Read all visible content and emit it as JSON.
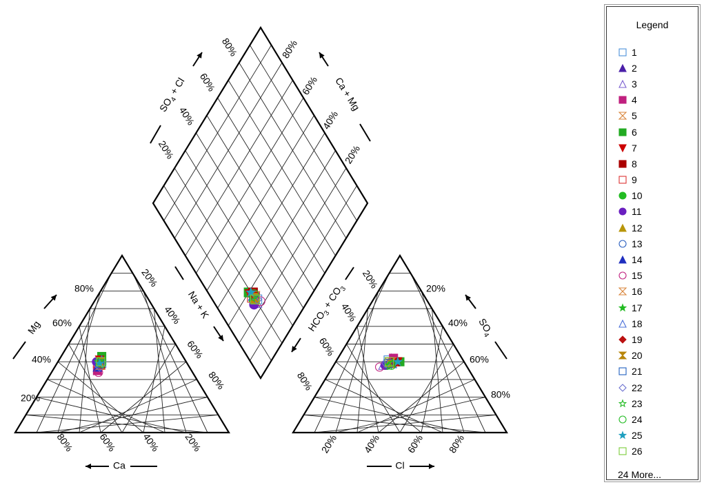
{
  "chart_data": {
    "type": "scatter",
    "subtype": "piper-diagram",
    "axes": {
      "cation_triangle": {
        "left_label": "Mg",
        "right_label": "Na + K",
        "bottom_label": "Ca",
        "left_ticks": [
          "20%",
          "40%",
          "60%",
          "80%"
        ],
        "right_ticks": [
          "20%",
          "40%",
          "60%",
          "80%"
        ],
        "bottom_ticks": [
          "80%",
          "60%",
          "40%",
          "20%"
        ]
      },
      "anion_triangle": {
        "left_label": "HCO3 + CO3",
        "right_label": "SO4",
        "bottom_label": "Cl",
        "left_ticks": [
          "20%",
          "40%",
          "60%",
          "80%"
        ],
        "right_ticks": [
          "20%",
          "40%",
          "60%",
          "80%"
        ],
        "bottom_ticks": [
          "20%",
          "40%",
          "60%",
          "80%"
        ]
      },
      "diamond": {
        "upper_left_label": "SO4 + Cl",
        "upper_right_label": "Ca + Mg",
        "upper_left_ticks": [
          "20%",
          "40%",
          "60%",
          "80%"
        ],
        "upper_right_ticks": [
          "20%",
          "40%",
          "60%",
          "80%"
        ]
      },
      "grid": true,
      "ticks_percent": [
        20,
        40,
        60,
        80
      ]
    },
    "legend": {
      "placement": "right",
      "title": "Legend",
      "more_text": "24 More..."
    },
    "series": [
      {
        "name": "1",
        "marker": "square-open",
        "color": "#4a90d9",
        "cation": [
          40,
          21
        ],
        "anion": [
          35,
          24
        ]
      },
      {
        "name": "2",
        "marker": "triangle",
        "color": "#4b1fa8",
        "cation": [
          43,
          20
        ],
        "anion": [
          33,
          25
        ]
      },
      {
        "name": "3",
        "marker": "triangle-open",
        "color": "#7b5fd0",
        "cation": [
          41,
          20
        ],
        "anion": [
          39,
          23
        ]
      },
      {
        "name": "4",
        "marker": "square",
        "color": "#c0207f",
        "cation": [
          44,
          21
        ],
        "anion": [
          32,
          26
        ]
      },
      {
        "name": "5",
        "marker": "hourglass-open",
        "color": "#d9853b",
        "cation": [
          42,
          20
        ],
        "anion": [
          35,
          25
        ]
      },
      {
        "name": "6",
        "marker": "square",
        "color": "#22aa22",
        "cation": [
          38,
          19
        ],
        "anion": [
          30,
          30
        ]
      },
      {
        "name": "7",
        "marker": "triangle-down",
        "color": "#cc0000",
        "cation": [
          40,
          19
        ],
        "anion": [
          31,
          29
        ]
      },
      {
        "name": "8",
        "marker": "square",
        "color": "#aa0000",
        "cation": [
          41,
          21
        ],
        "anion": [
          32,
          28
        ]
      },
      {
        "name": "9",
        "marker": "square-open",
        "color": "#dd3333",
        "cation": [
          42,
          19
        ],
        "anion": [
          33,
          27
        ]
      },
      {
        "name": "10",
        "marker": "circle",
        "color": "#22bb22",
        "cation": [
          41,
          19
        ],
        "anion": [
          37,
          25
        ]
      },
      {
        "name": "11",
        "marker": "circle",
        "color": "#6a1fc0",
        "cation": [
          42,
          18
        ],
        "anion": [
          38,
          24
        ]
      },
      {
        "name": "12",
        "marker": "triangle",
        "color": "#b8960a",
        "cation": [
          41,
          20
        ],
        "anion": [
          36,
          25
        ]
      },
      {
        "name": "13",
        "marker": "circle-open",
        "color": "#2a5fbf",
        "cation": [
          40,
          20
        ],
        "anion": [
          35,
          26
        ]
      },
      {
        "name": "14",
        "marker": "triangle",
        "color": "#1f2fbf",
        "cation": [
          43,
          20
        ],
        "anion": [
          34,
          27
        ]
      },
      {
        "name": "15",
        "marker": "circle-open",
        "color": "#c0207f",
        "cation": [
          44,
          22
        ],
        "anion": [
          41,
          22
        ]
      },
      {
        "name": "16",
        "marker": "hourglass-open",
        "color": "#d9853b",
        "cation": [
          41,
          21
        ],
        "anion": [
          34,
          26
        ]
      },
      {
        "name": "17",
        "marker": "star",
        "color": "#22bb22",
        "cation": [
          40,
          20
        ],
        "anion": [
          36,
          26
        ]
      },
      {
        "name": "18",
        "marker": "triangle-open",
        "color": "#4a6fd9",
        "cation": [
          39,
          20
        ],
        "anion": [
          34,
          27
        ]
      },
      {
        "name": "19",
        "marker": "diamond",
        "color": "#bb1111",
        "cation": [
          41,
          20
        ],
        "anion": [
          33,
          28
        ]
      },
      {
        "name": "20",
        "marker": "hourglass",
        "color": "#b8860b",
        "cation": [
          40,
          20
        ],
        "anion": [
          35,
          26
        ]
      },
      {
        "name": "21",
        "marker": "square-open",
        "color": "#1f5fbf",
        "cation": [
          41,
          20
        ],
        "anion": [
          36,
          25
        ]
      },
      {
        "name": "22",
        "marker": "diamond-open",
        "color": "#6a6fcf",
        "cation": [
          42,
          21
        ],
        "anion": [
          37,
          24
        ]
      },
      {
        "name": "23",
        "marker": "star-open",
        "color": "#22bb22",
        "cation": [
          41,
          19
        ],
        "anion": [
          34,
          27
        ]
      },
      {
        "name": "24",
        "marker": "circle-open",
        "color": "#22bb22",
        "cation": [
          40,
          21
        ],
        "anion": [
          35,
          27
        ]
      },
      {
        "name": "25",
        "marker": "star",
        "color": "#1f9fbf",
        "cation": [
          41,
          20
        ],
        "anion": [
          31,
          29
        ]
      },
      {
        "name": "26",
        "marker": "square-open",
        "color": "#7acc3a",
        "cation": [
          40,
          20
        ],
        "anion": [
          35,
          25
        ]
      }
    ]
  }
}
